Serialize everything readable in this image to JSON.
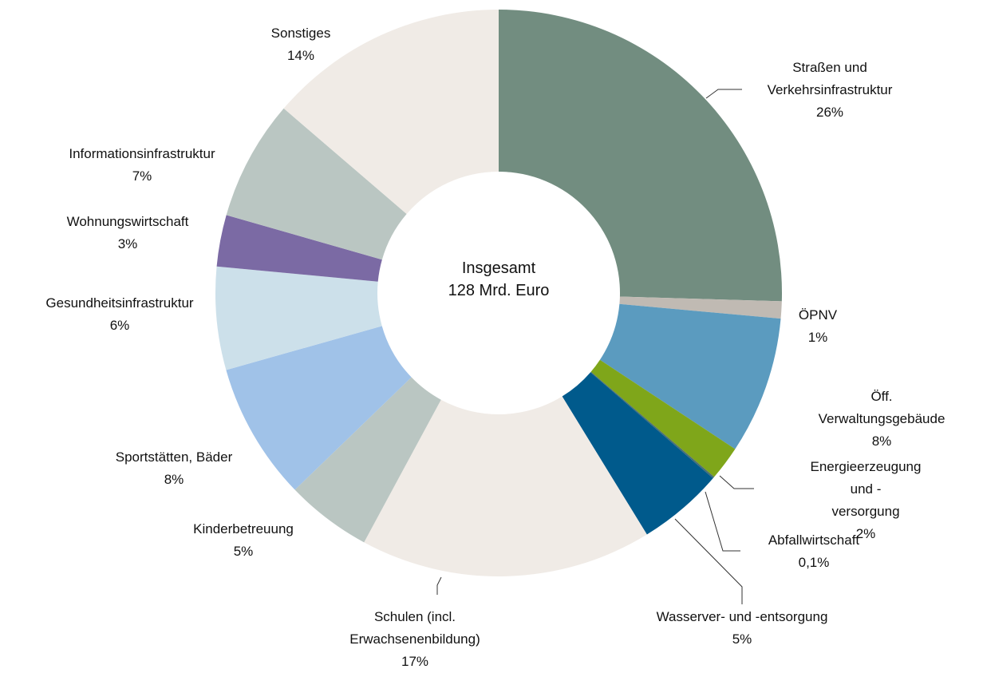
{
  "chart_data": {
    "type": "donut",
    "annotations": [
      "Insgesamt",
      "128 Mrd. Euro"
    ],
    "categories": [
      "Straßen und\nVerkehrsinfrastruktur",
      "ÖPNV",
      "Öff. Verwaltungsgebäude",
      "Energieerzeugung und -\nversorgung",
      "Abfallwirtschaft",
      "Wasserver- und -entsorgung",
      "Schulen (incl.\nErwachsenenbildung)",
      "Kinderbetreuung",
      "Sportstätten, Bäder",
      "Gesundheitsinfrastruktur",
      "Wohnungswirtschaft",
      "Informationsinfrastruktur",
      "Sonstiges"
    ],
    "values": [
      26,
      1,
      8,
      2,
      0.1,
      5,
      17,
      5,
      8,
      6,
      3,
      7,
      14
    ],
    "value_labels": [
      "26%",
      "1%",
      "8%",
      "2%",
      "0,1%",
      "5%",
      "17%",
      "5%",
      "8%",
      "6%",
      "3%",
      "7%",
      "14%"
    ],
    "colors": [
      "#728d80",
      "#c0bab3",
      "#5b9bbf",
      "#7fa61a",
      "#4a6e73",
      "#005a8c",
      "#f0ebe6",
      "#bac6c2",
      "#a0c2e8",
      "#cce0ea",
      "#7b6aa4",
      "#bac6c2",
      "#f0ebe6"
    ]
  }
}
